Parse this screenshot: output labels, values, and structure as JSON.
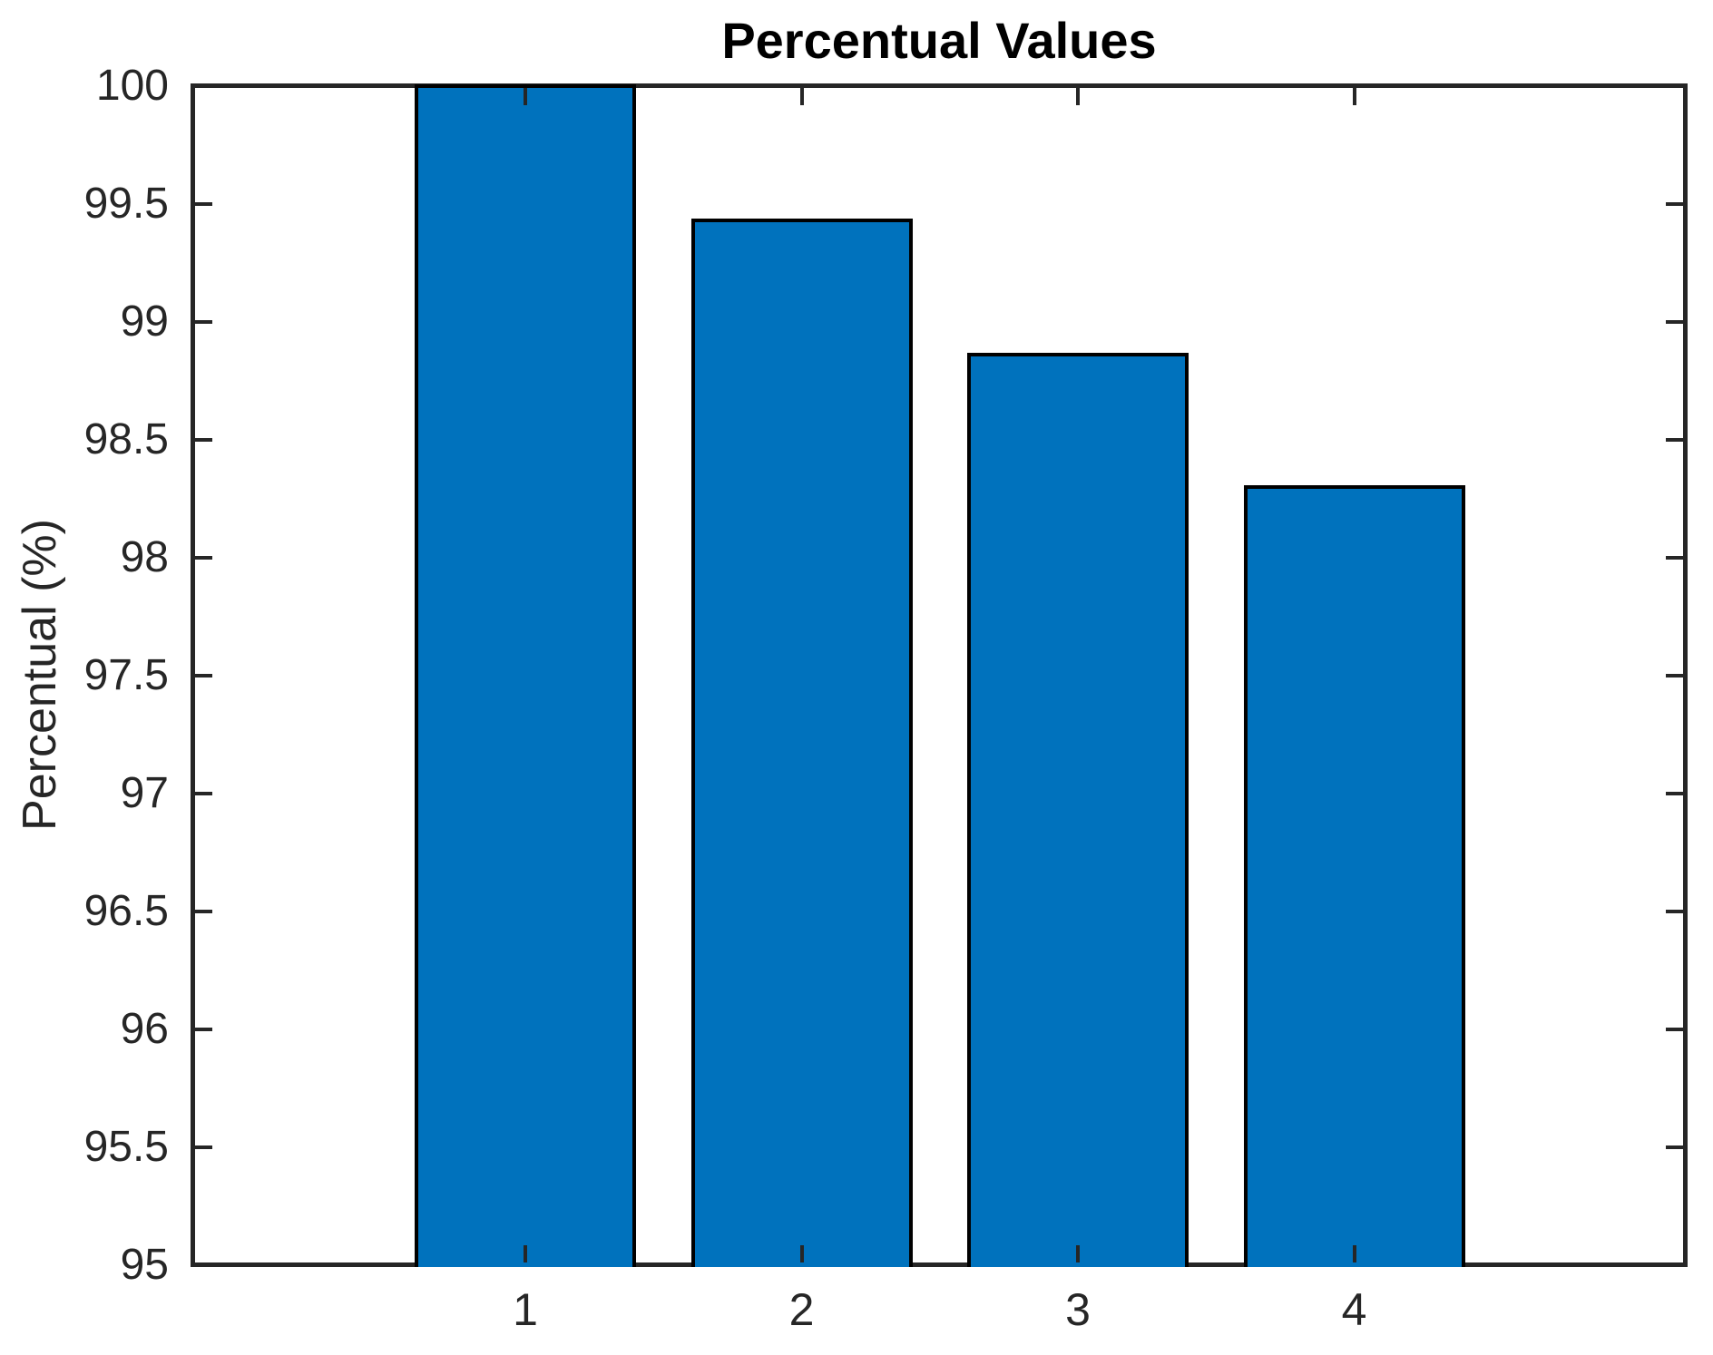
{
  "figure": {
    "background": "#FFFFFF"
  },
  "chart_data": {
    "type": "bar",
    "title": "Percentual Values",
    "xlabel": "",
    "ylabel": "Percentual (%)",
    "categories": [
      "1",
      "2",
      "3",
      "4"
    ],
    "values": [
      100,
      99.43,
      98.86,
      98.3
    ],
    "series": [
      {
        "name": "Percentual",
        "values": [
          100,
          99.43,
          98.86,
          98.3
        ]
      }
    ],
    "ylim": [
      95,
      100
    ],
    "ytick_step": 0.5,
    "yticks": [
      95,
      95.5,
      96,
      96.5,
      97,
      97.5,
      98,
      98.5,
      99,
      99.5,
      100
    ],
    "ytick_labels": [
      "95",
      "95.5",
      "96",
      "96.5",
      "97",
      "97.5",
      "98",
      "98.5",
      "99",
      "99.5",
      "100"
    ],
    "grid": false,
    "legend": false,
    "box": true,
    "tick_direction": "in",
    "bar_width_fraction": 0.8,
    "colors": {
      "bar_fill": "#0072BD",
      "bar_edge": "#000000",
      "axis": "#262626",
      "title": "#000000",
      "background": "#FFFFFF"
    }
  }
}
